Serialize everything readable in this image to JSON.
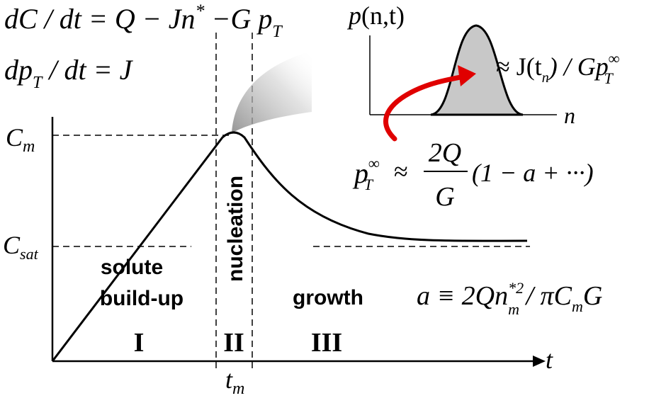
{
  "equations": {
    "eq1": {
      "lhs": "dC / dt = Q − Jn",
      "star": "*",
      "rest": " −G p",
      "sub": "T"
    },
    "eq2": {
      "lhs": "dp",
      "sub": "T",
      "rhs": " / dt = J"
    },
    "p_formula": {
      "p": "p",
      "sup": "∞",
      "sub": "T",
      "approx": "≈",
      "num": "2Q",
      "den": "G",
      "tail": "(1 − a + ···)"
    },
    "a_formula": {
      "lhs": "a ≡ 2Qn",
      "sup": "*2",
      "sub": "m",
      "mid": " / πC",
      "sub2": "m",
      "end": "G"
    }
  },
  "axes": {
    "x_label": "t",
    "tm_main": "t",
    "tm_sub": "m",
    "cm_main": "C",
    "cm_sub": "m",
    "csat_main": "C",
    "csat_sub": "sat"
  },
  "regions": {
    "build_line1": "solute",
    "build_line2": "build-up",
    "nucleation": "nucleation",
    "growth": "growth",
    "roman1": "I",
    "roman2": "II",
    "roman3": "III"
  },
  "inset": {
    "title_p": "p",
    "title_args": "(n,t)",
    "x_label": "n",
    "peak_approx": "≈ J(t",
    "peak_sub": "n",
    "peak_mid": ") / Gp",
    "peak_sup": "∞",
    "peak_sub2": "T"
  },
  "colors": {
    "arrow": "#e00000",
    "fill": "#c8c8c8",
    "curve": "#000000"
  }
}
